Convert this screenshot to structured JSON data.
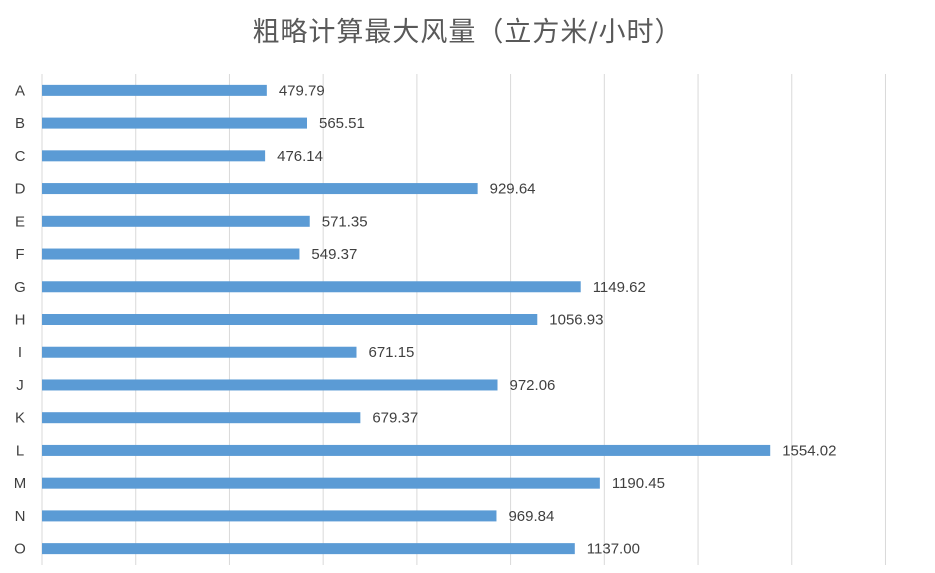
{
  "chart_data": {
    "type": "bar",
    "orientation": "horizontal",
    "title": "粗略计算最大风量（立方米/小时）",
    "categories": [
      "A",
      "B",
      "C",
      "D",
      "E",
      "F",
      "G",
      "H",
      "I",
      "J",
      "K",
      "L",
      "M",
      "N",
      "O"
    ],
    "values": [
      479.79,
      565.51,
      476.14,
      929.64,
      571.35,
      549.37,
      1149.62,
      1056.93,
      671.15,
      972.06,
      679.37,
      1554.02,
      1190.45,
      969.84,
      1137.0
    ],
    "value_labels": [
      "479.79",
      "565.51",
      "476.14",
      "929.64",
      "571.35",
      "549.37",
      "1149.62",
      "1056.93",
      "671.15",
      "972.06",
      "679.37",
      "1554.02",
      "1190.45",
      "969.84",
      "1137.00"
    ],
    "xlim": [
      0,
      1800
    ],
    "grid": true,
    "bar_color": "#5B9BD5",
    "grid_color": "#D9D9D9",
    "xlabel": "",
    "ylabel": ""
  }
}
